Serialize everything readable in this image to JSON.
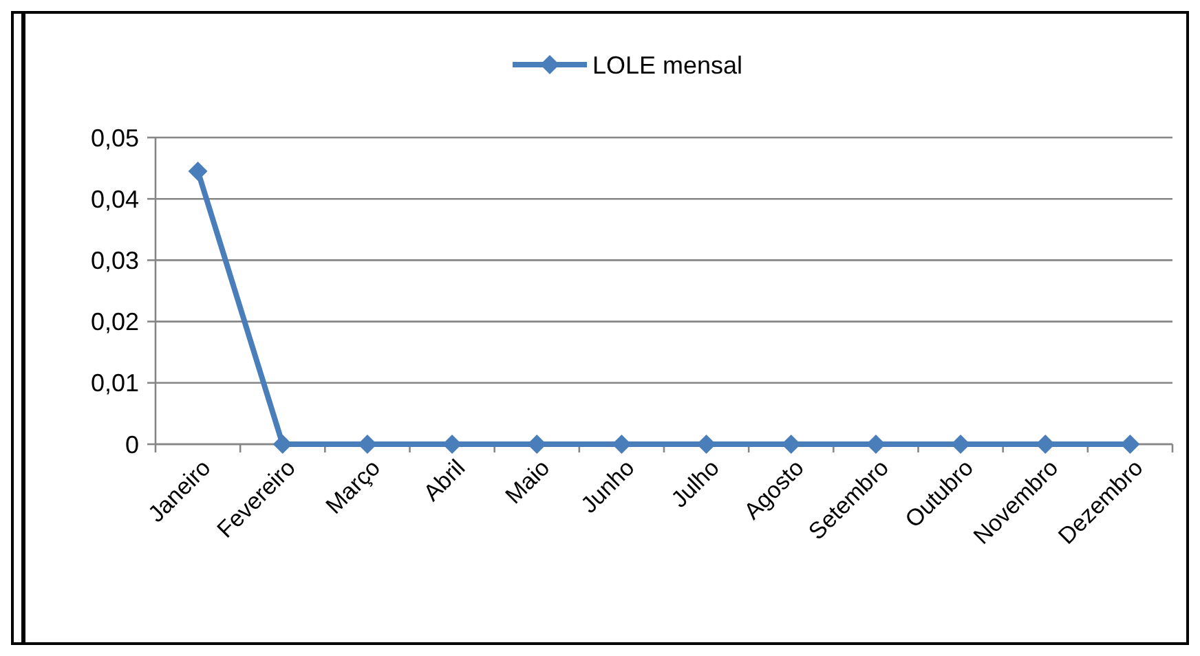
{
  "chart_data": {
    "type": "line",
    "categories": [
      "Janeiro",
      "Fevereiro",
      "Março",
      "Abril",
      "Maio",
      "Junho",
      "Julho",
      "Agosto",
      "Setembro",
      "Outubro",
      "Novembro",
      "Dezembro"
    ],
    "series": [
      {
        "name": "LOLE mensal",
        "color": "#4a7ebb",
        "values": [
          0.0445,
          0,
          0,
          0,
          0,
          0,
          0,
          0,
          0,
          0,
          0,
          0
        ]
      }
    ],
    "ylim": [
      0,
      0.05
    ],
    "yticks": [
      {
        "value": 0,
        "label": "0"
      },
      {
        "value": 0.01,
        "label": "0,01"
      },
      {
        "value": 0.02,
        "label": "0,02"
      },
      {
        "value": 0.03,
        "label": "0,03"
      },
      {
        "value": 0.04,
        "label": "0,04"
      },
      {
        "value": 0.05,
        "label": "0,05"
      }
    ],
    "grid": "y",
    "legend": "top",
    "marker": "diamond",
    "line_style": "solid"
  }
}
